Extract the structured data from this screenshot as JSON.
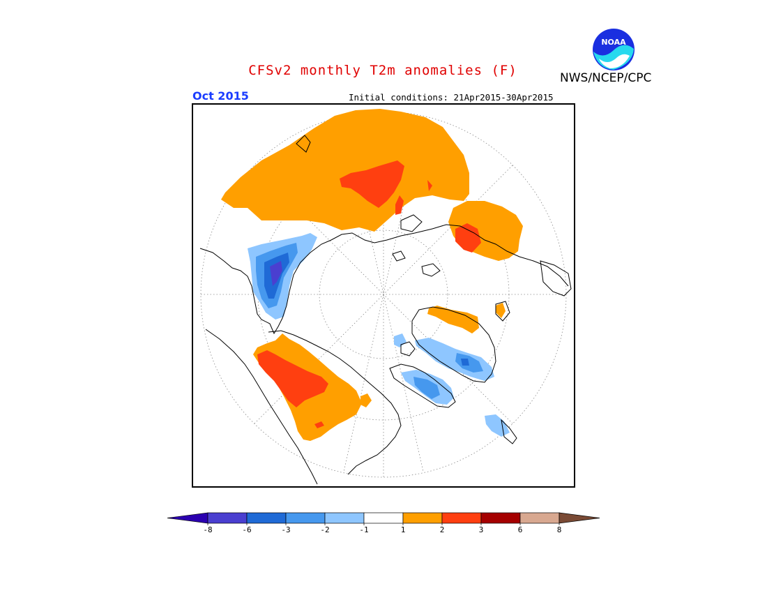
{
  "header": {
    "title": "CFSv2 monthly T2m anomalies (F)",
    "month": "Oct 2015",
    "initial_conditions": "Initial conditions: 21Apr2015-30Apr2015",
    "agency": "NWS/NCEP/CPC",
    "logo_text": "NOAA"
  },
  "colors": {
    "title": "#e00000",
    "month": "#1a3cff",
    "warm_1": "#ff9f00",
    "warm_2": "#ff3f10",
    "cool_1": "#8ec6ff",
    "cool_2": "#4aa0f0",
    "cool_3": "#1e6ad8"
  },
  "legend": {
    "labels": [
      "-8",
      "-6",
      "-3",
      "-2",
      "-1",
      "1",
      "2",
      "3",
      "6",
      "8"
    ],
    "colors": [
      "#2b00b0",
      "#4a3fd0",
      "#1f6ad6",
      "#4698ee",
      "#8ec6ff",
      "#ffffff",
      "#ff9f00",
      "#ff3f10",
      "#a50000",
      "#d8a890",
      "#7a4a35"
    ]
  }
}
